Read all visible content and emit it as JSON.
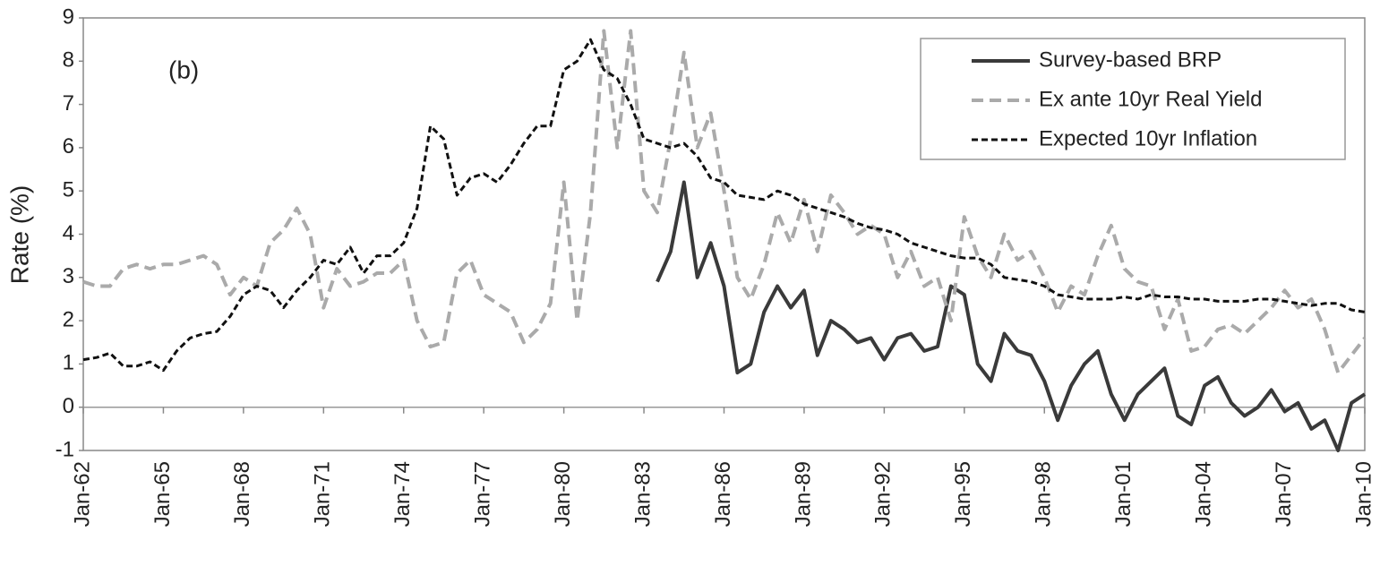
{
  "chart_data": {
    "type": "line",
    "y_label": "Rate (%)",
    "annotation": "(b)",
    "legend_position": "upper right",
    "ylim": [
      -1,
      9
    ],
    "yticks": [
      -1,
      0,
      1,
      2,
      3,
      4,
      5,
      6,
      7,
      8,
      9
    ],
    "xlim": [
      1962,
      2010
    ],
    "xticks": [
      {
        "value": 1962,
        "label": "Jan-62"
      },
      {
        "value": 1965,
        "label": "Jan-65"
      },
      {
        "value": 1968,
        "label": "Jan-68"
      },
      {
        "value": 1971,
        "label": "Jan-71"
      },
      {
        "value": 1974,
        "label": "Jan-74"
      },
      {
        "value": 1977,
        "label": "Jan-77"
      },
      {
        "value": 1980,
        "label": "Jan-80"
      },
      {
        "value": 1983,
        "label": "Jan-83"
      },
      {
        "value": 1986,
        "label": "Jan-86"
      },
      {
        "value": 1989,
        "label": "Jan-89"
      },
      {
        "value": 1992,
        "label": "Jan-92"
      },
      {
        "value": 1995,
        "label": "Jan-95"
      },
      {
        "value": 1998,
        "label": "Jan-98"
      },
      {
        "value": 2001,
        "label": "Jan-01"
      },
      {
        "value": 2004,
        "label": "Jan-04"
      },
      {
        "value": 2007,
        "label": "Jan-07"
      },
      {
        "value": 2010,
        "label": "Jan-10"
      }
    ],
    "x": [
      1962,
      1962.5,
      1963,
      1963.5,
      1964,
      1964.5,
      1965,
      1965.5,
      1966,
      1966.5,
      1967,
      1967.5,
      1968,
      1968.5,
      1969,
      1969.5,
      1970,
      1970.5,
      1971,
      1971.5,
      1972,
      1972.5,
      1973,
      1973.5,
      1974,
      1974.5,
      1975,
      1975.5,
      1976,
      1976.5,
      1977,
      1977.5,
      1978,
      1978.5,
      1979,
      1979.5,
      1980,
      1980.5,
      1981,
      1981.5,
      1982,
      1982.5,
      1983,
      1983.5,
      1984,
      1984.5,
      1985,
      1985.5,
      1986,
      1986.5,
      1987,
      1987.5,
      1988,
      1988.5,
      1989,
      1989.5,
      1990,
      1990.5,
      1991,
      1991.5,
      1992,
      1992.5,
      1993,
      1993.5,
      1994,
      1994.5,
      1995,
      1995.5,
      1996,
      1996.5,
      1997,
      1997.5,
      1998,
      1998.5,
      1999,
      1999.5,
      2000,
      2000.5,
      2001,
      2001.5,
      2002,
      2002.5,
      2003,
      2003.5,
      2004,
      2004.5,
      2005,
      2005.5,
      2006,
      2006.5,
      2007,
      2007.5,
      2008,
      2008.5,
      2009,
      2009.5,
      2010
    ],
    "series": [
      {
        "name": "Survey-based BRP",
        "color": "#3a3a3a",
        "style": "solid",
        "values": [
          null,
          null,
          null,
          null,
          null,
          null,
          null,
          null,
          null,
          null,
          null,
          null,
          null,
          null,
          null,
          null,
          null,
          null,
          null,
          null,
          null,
          null,
          null,
          null,
          null,
          null,
          null,
          null,
          null,
          null,
          null,
          null,
          null,
          null,
          null,
          null,
          null,
          null,
          null,
          null,
          null,
          null,
          null,
          2.9,
          3.6,
          5.2,
          3.0,
          3.8,
          2.8,
          0.8,
          1.0,
          2.2,
          2.8,
          2.3,
          2.7,
          1.2,
          2.0,
          1.8,
          1.5,
          1.6,
          1.1,
          1.6,
          1.7,
          1.3,
          1.4,
          2.8,
          2.6,
          1.0,
          0.6,
          1.7,
          1.3,
          1.2,
          0.6,
          -0.3,
          0.5,
          1.0,
          1.3,
          0.3,
          -0.3,
          0.3,
          0.6,
          0.9,
          -0.2,
          -0.4,
          0.5,
          0.7,
          0.1,
          -0.2,
          0.0,
          0.4,
          -0.1,
          0.1,
          -0.5,
          -0.3,
          -1.0,
          0.1,
          0.3
        ]
      },
      {
        "name": "Ex ante 10yr Real Yield",
        "color": "#aaaaaa",
        "style": "dashed",
        "values": [
          2.9,
          2.8,
          2.8,
          3.2,
          3.3,
          3.2,
          3.3,
          3.3,
          3.4,
          3.5,
          3.3,
          2.6,
          3.0,
          2.8,
          3.8,
          4.1,
          4.6,
          4.0,
          2.3,
          3.2,
          2.8,
          2.9,
          3.1,
          3.1,
          3.4,
          2.0,
          1.4,
          1.5,
          3.1,
          3.4,
          2.6,
          2.4,
          2.2,
          1.5,
          1.8,
          2.4,
          5.2,
          2.0,
          4.5,
          8.7,
          6.0,
          8.7,
          5.0,
          4.5,
          6.2,
          8.2,
          6.0,
          6.8,
          5.0,
          3.0,
          2.5,
          3.3,
          4.5,
          3.8,
          4.8,
          3.6,
          4.9,
          4.5,
          4.0,
          4.2,
          4.0,
          3.0,
          3.6,
          2.8,
          3.0,
          2.0,
          4.4,
          3.5,
          3.0,
          4.0,
          3.4,
          3.6,
          3.0,
          2.2,
          2.8,
          2.6,
          3.5,
          4.2,
          3.2,
          2.9,
          2.8,
          1.8,
          2.5,
          1.3,
          1.4,
          1.8,
          1.9,
          1.7,
          2.0,
          2.3,
          2.7,
          2.3,
          2.5,
          1.8,
          0.8,
          1.2,
          1.6
        ]
      },
      {
        "name": "Expected 10yr Inflation",
        "color": "#111111",
        "style": "dotted",
        "values": [
          1.1,
          1.15,
          1.25,
          0.95,
          0.95,
          1.05,
          0.85,
          1.3,
          1.6,
          1.7,
          1.75,
          2.1,
          2.6,
          2.8,
          2.7,
          2.3,
          2.7,
          3.0,
          3.4,
          3.3,
          3.7,
          3.1,
          3.5,
          3.5,
          3.8,
          4.6,
          6.5,
          6.2,
          4.9,
          5.3,
          5.4,
          5.2,
          5.6,
          6.1,
          6.5,
          6.5,
          7.8,
          8.0,
          8.5,
          7.8,
          7.6,
          7.0,
          6.2,
          6.1,
          6.0,
          6.1,
          5.8,
          5.3,
          5.2,
          4.9,
          4.85,
          4.8,
          5.0,
          4.9,
          4.7,
          4.6,
          4.5,
          4.4,
          4.25,
          4.15,
          4.1,
          4.0,
          3.8,
          3.7,
          3.6,
          3.5,
          3.45,
          3.45,
          3.3,
          3.0,
          2.95,
          2.9,
          2.8,
          2.6,
          2.55,
          2.5,
          2.5,
          2.5,
          2.55,
          2.5,
          2.6,
          2.55,
          2.55,
          2.5,
          2.5,
          2.45,
          2.45,
          2.45,
          2.5,
          2.5,
          2.45,
          2.4,
          2.35,
          2.4,
          2.4,
          2.25,
          2.2
        ]
      }
    ]
  }
}
